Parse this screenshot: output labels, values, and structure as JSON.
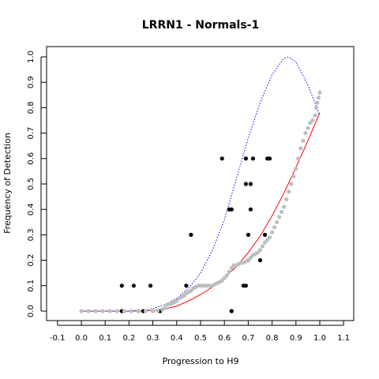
{
  "chart_data": {
    "type": "scatter",
    "title": "LRRN1 - Normals-1",
    "xlabel": "Progression to H9",
    "ylabel": "Frequency of Detection",
    "xlim": [
      -0.1,
      1.1
    ],
    "ylim": [
      0.0,
      1.0
    ],
    "x_ticks": [
      "-0.1",
      "0.0",
      "0.1",
      "0.2",
      "0.3",
      "0.4",
      "0.5",
      "0.6",
      "0.7",
      "0.8",
      "0.9",
      "1.0",
      "1.1"
    ],
    "y_ticks": [
      "0.0",
      "0.1",
      "0.2",
      "0.3",
      "0.4",
      "0.5",
      "0.6",
      "0.7",
      "0.8",
      "0.9",
      "1.0"
    ],
    "grid": false,
    "legend": null,
    "series": [
      {
        "style": "points",
        "color": "#000000",
        "points": [
          [
            0.17,
            0.1
          ],
          [
            0.17,
            0.0
          ],
          [
            0.22,
            0.1
          ],
          [
            0.24,
            0.0
          ],
          [
            0.26,
            0.0
          ],
          [
            0.29,
            0.1
          ],
          [
            0.33,
            0.0
          ],
          [
            0.44,
            0.1
          ],
          [
            0.46,
            0.3
          ],
          [
            0.59,
            0.6
          ],
          [
            0.62,
            0.4
          ],
          [
            0.63,
            0.4
          ],
          [
            0.63,
            0.0
          ],
          [
            0.68,
            0.1
          ],
          [
            0.69,
            0.1
          ],
          [
            0.69,
            0.6
          ],
          [
            0.69,
            0.5
          ],
          [
            0.7,
            0.2
          ],
          [
            0.7,
            0.3
          ],
          [
            0.71,
            0.5
          ],
          [
            0.71,
            0.4
          ],
          [
            0.72,
            0.6
          ],
          [
            0.75,
            0.2
          ],
          [
            0.77,
            0.3
          ],
          [
            0.78,
            0.6
          ],
          [
            0.79,
            0.6
          ]
        ]
      },
      {
        "style": "points",
        "color": "#bebebe",
        "points": [
          [
            0.0,
            0.0
          ],
          [
            0.03,
            0.0
          ],
          [
            0.06,
            0.0
          ],
          [
            0.09,
            0.0
          ],
          [
            0.12,
            0.0
          ],
          [
            0.15,
            0.0
          ],
          [
            0.18,
            0.0
          ],
          [
            0.21,
            0.0
          ],
          [
            0.24,
            0.0
          ],
          [
            0.27,
            0.0
          ],
          [
            0.3,
            0.0
          ],
          [
            0.32,
            0.002
          ],
          [
            0.34,
            0.006
          ],
          [
            0.35,
            0.012
          ],
          [
            0.36,
            0.025
          ],
          [
            0.37,
            0.028
          ],
          [
            0.38,
            0.03
          ],
          [
            0.39,
            0.035
          ],
          [
            0.4,
            0.04
          ],
          [
            0.41,
            0.05
          ],
          [
            0.42,
            0.055
          ],
          [
            0.43,
            0.06
          ],
          [
            0.44,
            0.07
          ],
          [
            0.45,
            0.075
          ],
          [
            0.46,
            0.08
          ],
          [
            0.47,
            0.09
          ],
          [
            0.48,
            0.095
          ],
          [
            0.49,
            0.1
          ],
          [
            0.5,
            0.1
          ],
          [
            0.51,
            0.1
          ],
          [
            0.52,
            0.1
          ],
          [
            0.53,
            0.1
          ],
          [
            0.54,
            0.1
          ],
          [
            0.55,
            0.1
          ],
          [
            0.56,
            0.105
          ],
          [
            0.57,
            0.11
          ],
          [
            0.58,
            0.115
          ],
          [
            0.59,
            0.12
          ],
          [
            0.6,
            0.13
          ],
          [
            0.61,
            0.14
          ],
          [
            0.62,
            0.155
          ],
          [
            0.63,
            0.17
          ],
          [
            0.64,
            0.18
          ],
          [
            0.65,
            0.18
          ],
          [
            0.66,
            0.185
          ],
          [
            0.67,
            0.19
          ],
          [
            0.68,
            0.19
          ],
          [
            0.69,
            0.195
          ],
          [
            0.7,
            0.2
          ],
          [
            0.71,
            0.21
          ],
          [
            0.72,
            0.22
          ],
          [
            0.73,
            0.225
          ],
          [
            0.74,
            0.23
          ],
          [
            0.75,
            0.24
          ],
          [
            0.76,
            0.255
          ],
          [
            0.77,
            0.27
          ],
          [
            0.78,
            0.28
          ],
          [
            0.79,
            0.29
          ],
          [
            0.8,
            0.31
          ],
          [
            0.81,
            0.33
          ],
          [
            0.82,
            0.35
          ],
          [
            0.83,
            0.37
          ],
          [
            0.84,
            0.39
          ],
          [
            0.85,
            0.41
          ],
          [
            0.86,
            0.44
          ],
          [
            0.87,
            0.47
          ],
          [
            0.88,
            0.5
          ],
          [
            0.89,
            0.53
          ],
          [
            0.9,
            0.56
          ],
          [
            0.91,
            0.6
          ],
          [
            0.92,
            0.64
          ],
          [
            0.93,
            0.67
          ],
          [
            0.94,
            0.7
          ],
          [
            0.95,
            0.72
          ],
          [
            0.96,
            0.74
          ],
          [
            0.97,
            0.75
          ],
          [
            0.98,
            0.77
          ],
          [
            0.985,
            0.8
          ],
          [
            0.99,
            0.82
          ],
          [
            0.995,
            0.84
          ],
          [
            1.0,
            0.86
          ]
        ]
      },
      {
        "style": "line",
        "color": "#ff0000",
        "dash": "solid",
        "points": [
          [
            0.0,
            0.0
          ],
          [
            0.1,
            0.0
          ],
          [
            0.2,
            0.0
          ],
          [
            0.3,
            0.002
          ],
          [
            0.35,
            0.008
          ],
          [
            0.4,
            0.02
          ],
          [
            0.45,
            0.04
          ],
          [
            0.5,
            0.065
          ],
          [
            0.55,
            0.095
          ],
          [
            0.6,
            0.13
          ],
          [
            0.65,
            0.175
          ],
          [
            0.7,
            0.23
          ],
          [
            0.75,
            0.295
          ],
          [
            0.8,
            0.375
          ],
          [
            0.85,
            0.465
          ],
          [
            0.9,
            0.565
          ],
          [
            0.95,
            0.67
          ],
          [
            1.0,
            0.78
          ]
        ]
      },
      {
        "style": "line",
        "color": "#0000ff",
        "dash": "dotted",
        "points": [
          [
            0.0,
            0.0
          ],
          [
            0.1,
            0.0
          ],
          [
            0.2,
            0.0
          ],
          [
            0.25,
            0.003
          ],
          [
            0.3,
            0.01
          ],
          [
            0.35,
            0.025
          ],
          [
            0.4,
            0.05
          ],
          [
            0.45,
            0.09
          ],
          [
            0.5,
            0.15
          ],
          [
            0.55,
            0.24
          ],
          [
            0.6,
            0.36
          ],
          [
            0.65,
            0.52
          ],
          [
            0.7,
            0.68
          ],
          [
            0.75,
            0.82
          ],
          [
            0.8,
            0.93
          ],
          [
            0.85,
            0.995
          ],
          [
            0.87,
            1.0
          ],
          [
            0.9,
            0.98
          ],
          [
            0.95,
            0.89
          ],
          [
            1.0,
            0.77
          ]
        ]
      }
    ]
  }
}
